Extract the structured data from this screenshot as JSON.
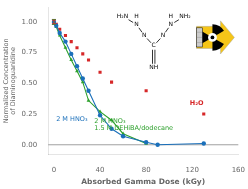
{
  "chart_data": {
    "type": "line",
    "xlabel": "Absorbed Gamma Dose (kGy)",
    "ylabel": "Normalized Concentration\nof Diaminoguanidine",
    "xlim": [
      -5,
      160
    ],
    "ylim": [
      -0.08,
      1.12
    ],
    "xticks": [
      0,
      40,
      80,
      120,
      160
    ],
    "yticks": [
      {
        "value": 0,
        "label": "0.00"
      },
      0.25,
      {
        "value": 0.5,
        "label": "0.50"
      },
      0.75,
      {
        "value": 1,
        "label": "1.00"
      }
    ],
    "grid": false,
    "hline": 0,
    "annotations": [
      "H",
      "N",
      "H₂N",
      "H",
      "N",
      "NH₂",
      "N",
      "N",
      "C",
      "NH"
    ],
    "series": [
      {
        "name": "2 M HNO₃",
        "color": "#1a6fba",
        "marker": "circle",
        "line_style": "solid",
        "x": [
          0,
          2,
          5,
          10,
          15,
          20,
          25,
          30,
          40,
          50,
          60,
          80,
          90,
          130
        ],
        "values": [
          1.0,
          0.97,
          0.91,
          0.84,
          0.74,
          0.64,
          0.54,
          0.44,
          0.24,
          0.13,
          0.07,
          0.02,
          0.0,
          0.01
        ],
        "yerr": [
          0.02,
          null,
          null,
          null,
          null,
          null,
          null,
          null,
          null,
          null,
          null,
          null,
          null,
          null
        ]
      },
      {
        "name": "2 M HNO₃\n1.5 M DEHiBA/dodecane",
        "color": "#2da02c",
        "marker": "triangle",
        "line_style": "solid",
        "x": [
          0,
          2,
          5,
          10,
          15,
          20,
          25,
          30,
          40,
          50,
          60,
          80
        ],
        "values": [
          1.0,
          0.96,
          0.89,
          0.79,
          0.69,
          0.6,
          0.51,
          0.36,
          0.27,
          0.2,
          0.09,
          0.01
        ],
        "yerr": [
          0.02,
          null,
          null,
          null,
          null,
          null,
          null,
          null,
          null,
          null,
          null,
          null
        ]
      },
      {
        "name": "H₂O",
        "color": "#d62728",
        "marker": "square",
        "line_style": "none",
        "type": "scatter",
        "x": [
          0,
          2,
          5,
          10,
          15,
          20,
          25,
          30,
          40,
          50,
          80,
          130
        ],
        "values": [
          1.0,
          0.98,
          0.94,
          0.89,
          0.84,
          0.79,
          0.74,
          0.69,
          0.59,
          0.51,
          0.44,
          0.25
        ],
        "yerr": [
          0.015,
          null,
          null,
          null,
          null,
          null,
          null,
          null,
          null,
          null,
          null,
          null
        ]
      }
    ]
  }
}
